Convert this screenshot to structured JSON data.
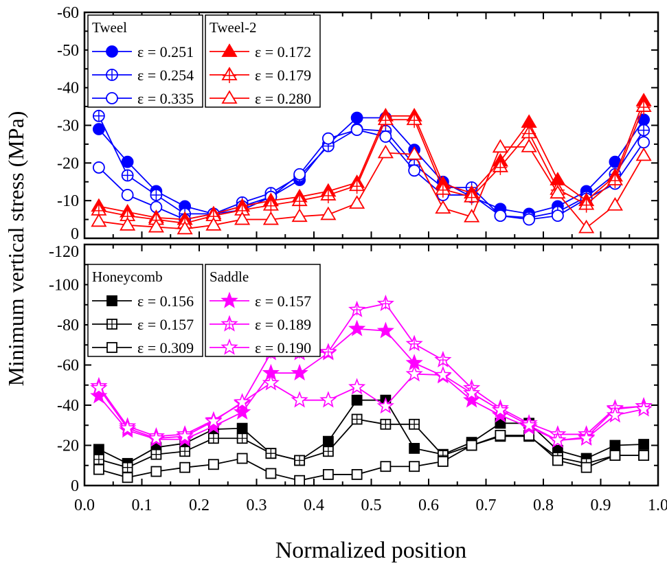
{
  "chart_data": [
    {
      "type": "line",
      "panel": "top",
      "x": [
        0.025,
        0.075,
        0.125,
        0.175,
        0.225,
        0.275,
        0.325,
        0.375,
        0.425,
        0.475,
        0.525,
        0.575,
        0.625,
        0.675,
        0.725,
        0.775,
        0.825,
        0.875,
        0.925,
        0.975
      ],
      "ylim": [
        -60,
        0
      ],
      "y_reversed": true,
      "yticks": [
        -60,
        -50,
        -40,
        -30,
        -20,
        -10,
        0
      ],
      "legend_groups": [
        {
          "title": "Tweel",
          "series_indices": [
            0,
            1,
            2
          ],
          "placement": "top-left"
        },
        {
          "title": "Tweel-2",
          "series_indices": [
            3,
            4,
            5
          ],
          "placement": "top-left"
        }
      ],
      "series": [
        {
          "name": "ε = 0.251",
          "group": "Tweel",
          "color": "#0000ff",
          "marker": "filled-circle",
          "values": [
            -29,
            -20.3,
            -12.5,
            -8.5,
            -6.5,
            -7.5,
            -11,
            -15.5,
            -25,
            -32,
            -32,
            -23.5,
            -15,
            -11,
            -7.8,
            -6.5,
            -8.5,
            -12.5,
            -20.3,
            -31.5
          ]
        },
        {
          "name": "ε = 0.254",
          "group": "Tweel",
          "color": "#0000ff",
          "marker": "crossed-circle",
          "values": [
            -32.5,
            -16.7,
            -11.5,
            -6.5,
            -6.5,
            -9.5,
            -12,
            -16.5,
            -24.5,
            -29,
            -28.5,
            -19.5,
            -13.5,
            -13.5,
            -6,
            -5.5,
            -7,
            -11,
            -17,
            -28.7
          ]
        },
        {
          "name": "ε = 0.335",
          "group": "Tweel",
          "color": "#0000ff",
          "marker": "open-circle",
          "values": [
            -18.8,
            -11.5,
            -8.3,
            -5,
            -6.5,
            -8.5,
            -11,
            -17,
            -26.5,
            -28.8,
            -27,
            -18,
            -11.5,
            -11.5,
            -6,
            -5,
            -6,
            -10.5,
            -14.5,
            -25.5
          ]
        },
        {
          "name": "ε = 0.172",
          "group": "Tweel-2",
          "color": "#ff0000",
          "marker": "filled-triangle",
          "values": [
            -8.5,
            -7,
            -5.5,
            -5,
            -6.5,
            -8.5,
            -10,
            -11,
            -12.5,
            -14.8,
            -32.5,
            -32.5,
            -14.5,
            -12,
            -20.5,
            -30.8,
            -15.5,
            -10,
            -16.5,
            -36.5
          ]
        },
        {
          "name": "ε = 0.179",
          "group": "Tweel-2",
          "color": "#ff0000",
          "marker": "crossed-triangle",
          "values": [
            -7.5,
            -6,
            -5,
            -4,
            -6,
            -7.5,
            -8.8,
            -10,
            -11.5,
            -14,
            -31.5,
            -31.5,
            -13,
            -11,
            -19,
            -28,
            -13,
            -9,
            -15.5,
            -35
          ]
        },
        {
          "name": "ε = 0.280",
          "group": "Tweel-2",
          "color": "#ff0000",
          "marker": "open-triangle",
          "values": [
            -4.5,
            -3.5,
            -3,
            -2.5,
            -3.5,
            -5,
            -5,
            -5.8,
            -6.3,
            -9.3,
            -22.7,
            -22.3,
            -8,
            -5.7,
            -24.2,
            -24.3,
            -12,
            -2.8,
            -8.8,
            -22
          ]
        }
      ]
    },
    {
      "type": "line",
      "panel": "bottom",
      "x": [
        0.025,
        0.075,
        0.125,
        0.175,
        0.225,
        0.275,
        0.325,
        0.375,
        0.425,
        0.475,
        0.525,
        0.575,
        0.625,
        0.675,
        0.725,
        0.775,
        0.825,
        0.875,
        0.925,
        0.975
      ],
      "ylim": [
        -120,
        0
      ],
      "y_reversed": true,
      "yticks": [
        -120,
        -100,
        -80,
        -60,
        -40,
        -20,
        0
      ],
      "xlim": [
        0,
        1
      ],
      "xticks": [
        "0.0",
        "0.1",
        "0.2",
        "0.3",
        "0.4",
        "0.5",
        "0.6",
        "0.7",
        "0.8",
        "0.9",
        "1.0"
      ],
      "legend_groups": [
        {
          "title": "Honeycomb",
          "series_indices": [
            0,
            1,
            2
          ],
          "placement": "top-left"
        },
        {
          "title": "Saddle",
          "series_indices": [
            3,
            4,
            5
          ],
          "placement": "top-left"
        }
      ],
      "series": [
        {
          "name": "ε = 0.156",
          "group": "Honeycomb",
          "color": "#000000",
          "marker": "filled-square",
          "values": [
            -18,
            -11,
            -19,
            -21,
            -28,
            -28.5,
            -16,
            -12.5,
            -22,
            -42.5,
            -42.5,
            -18.5,
            -15.5,
            -21.5,
            -31,
            -31,
            -17.5,
            -13.5,
            -20,
            -20.5
          ]
        },
        {
          "name": "ε = 0.157",
          "group": "Honeycomb",
          "color": "#000000",
          "marker": "crossed-square",
          "values": [
            -13,
            -9,
            -15.5,
            -17,
            -23.5,
            -23.5,
            -16,
            -12.5,
            -17,
            -33,
            -30.5,
            -30.5,
            -15,
            -20,
            -24.5,
            -24.5,
            -14,
            -11,
            -15,
            -15
          ]
        },
        {
          "name": "ε = 0.309",
          "group": "Honeycomb",
          "color": "#000000",
          "marker": "open-square",
          "values": [
            -8,
            -4,
            -7,
            -9,
            -10.5,
            -13.5,
            -6,
            -2.5,
            -5.5,
            -5.5,
            -9.5,
            -9.5,
            -12,
            -20,
            -25,
            -25,
            -12.5,
            -9,
            -15,
            -15
          ]
        },
        {
          "name": "ε = 0.157",
          "group": "Saddle",
          "color": "#ff00ff",
          "marker": "filled-star",
          "values": [
            -44.5,
            -27.5,
            -23,
            -23,
            -29.5,
            -36.5,
            -56,
            -56,
            -66,
            -78,
            -77,
            -61,
            -54.5,
            -42.5,
            -35,
            -29,
            -22.5,
            -24,
            -38,
            -39.5
          ]
        },
        {
          "name": "ε = 0.189",
          "group": "Saddle",
          "color": "#ff00ff",
          "marker": "crossed-star",
          "values": [
            -49.5,
            -29.5,
            -24.5,
            -25.5,
            -32.5,
            -41,
            -66,
            -66,
            -66.5,
            -87.5,
            -90.5,
            -70.5,
            -62.5,
            -48.5,
            -38.5,
            -31,
            -25.5,
            -25.5,
            -38.5,
            -39.5
          ]
        },
        {
          "name": "ε = 0.190",
          "group": "Saddle",
          "color": "#ff00ff",
          "marker": "open-star",
          "values": [
            -48.5,
            -28.5,
            -23.5,
            -24.5,
            -32,
            -41.5,
            -51,
            -42.5,
            -42.5,
            -49,
            -39.5,
            -55.5,
            -55,
            -46,
            -37.5,
            -30,
            -22.5,
            -23.5,
            -35,
            -38
          ]
        }
      ]
    }
  ],
  "axes": {
    "xlabel": "Normalized position",
    "ylabel": "Minimum vertical stress (MPa)"
  }
}
